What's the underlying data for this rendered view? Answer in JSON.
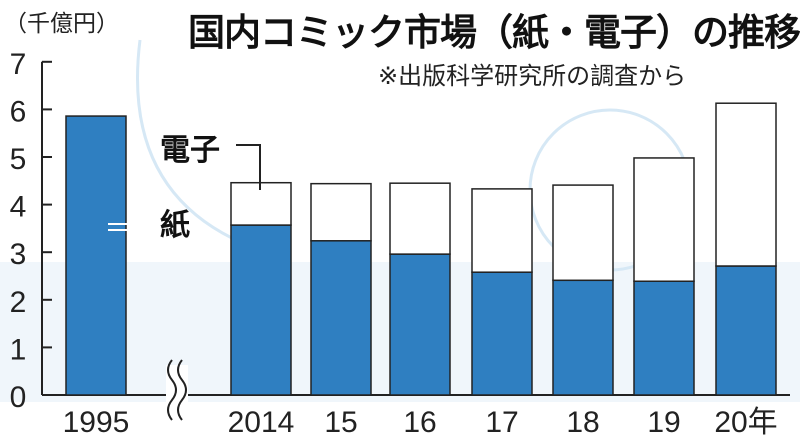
{
  "chart_data": {
    "type": "bar",
    "stacked": true,
    "title": "国内コミック市場（紙・電子）の推移",
    "subtitle": "※出版科学研究所の調査から",
    "ylabel": "（千億円）",
    "ylim": [
      0,
      7
    ],
    "yticks": [
      "0",
      "1",
      "2",
      "3",
      "4",
      "5",
      "6",
      "7"
    ],
    "categories": [
      "1995",
      "2014",
      "15",
      "16",
      "17",
      "18",
      "19",
      "20年"
    ],
    "axis_break_after": "1995",
    "series": [
      {
        "name": "紙",
        "color": "#2f7fc1",
        "values": [
          5.86,
          3.57,
          3.24,
          2.96,
          2.58,
          2.41,
          2.39,
          2.71
        ]
      },
      {
        "name": "電子",
        "color": "#ffffff",
        "values": [
          0,
          0.89,
          1.2,
          1.49,
          1.75,
          2.0,
          2.59,
          3.42
        ]
      }
    ],
    "grid": false,
    "legend": "inline-labels"
  }
}
